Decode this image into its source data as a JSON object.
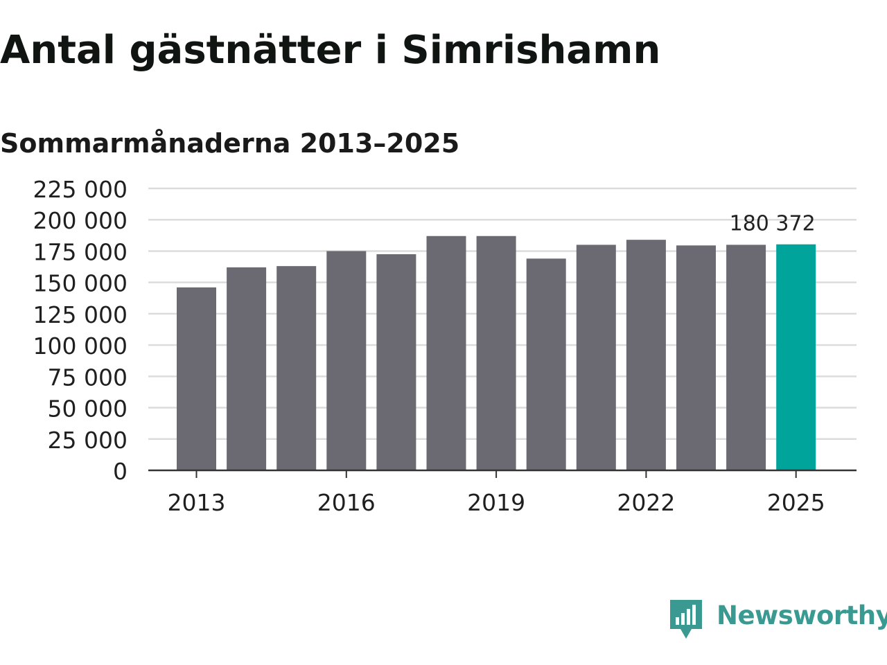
{
  "header": {
    "title": "Antal gästnätter i Simrishamn",
    "subtitle": "Sommarmånaderna 2013–2025"
  },
  "brand": {
    "name": "Newsworthy",
    "icon": "newsworthy-logo-icon",
    "color": "#3a9a91"
  },
  "colors": {
    "bar": "#6b6a72",
    "highlight": "#00a49a",
    "grid": "#dcdcdc",
    "axis": "#333333",
    "text": "#1f1f1f"
  },
  "chart_data": {
    "type": "bar",
    "title": "Antal gästnätter i Simrishamn",
    "subtitle": "Sommarmånaderna 2013–2025",
    "xlabel": "",
    "ylabel": "",
    "categories": [
      "2013",
      "2014",
      "2015",
      "2016",
      "2017",
      "2018",
      "2019",
      "2020",
      "2021",
      "2022",
      "2023",
      "2024",
      "2025"
    ],
    "values": [
      146000,
      162000,
      163000,
      175000,
      172500,
      187000,
      187000,
      169000,
      180000,
      184000,
      179500,
      180000,
      180372
    ],
    "highlight_category": "2025",
    "highlight_label": "180 372",
    "x_tick_labels": [
      "2013",
      "2016",
      "2019",
      "2022",
      "2025"
    ],
    "y_tick_labels": [
      "0",
      "25 000",
      "50 000",
      "75 000",
      "100 000",
      "125 000",
      "150 000",
      "175 000",
      "200 000",
      "225 000"
    ],
    "y_ticks": [
      0,
      25000,
      50000,
      75000,
      100000,
      125000,
      150000,
      175000,
      200000,
      225000
    ],
    "ylim": [
      0,
      225000
    ],
    "grid": true,
    "legend": "none"
  }
}
